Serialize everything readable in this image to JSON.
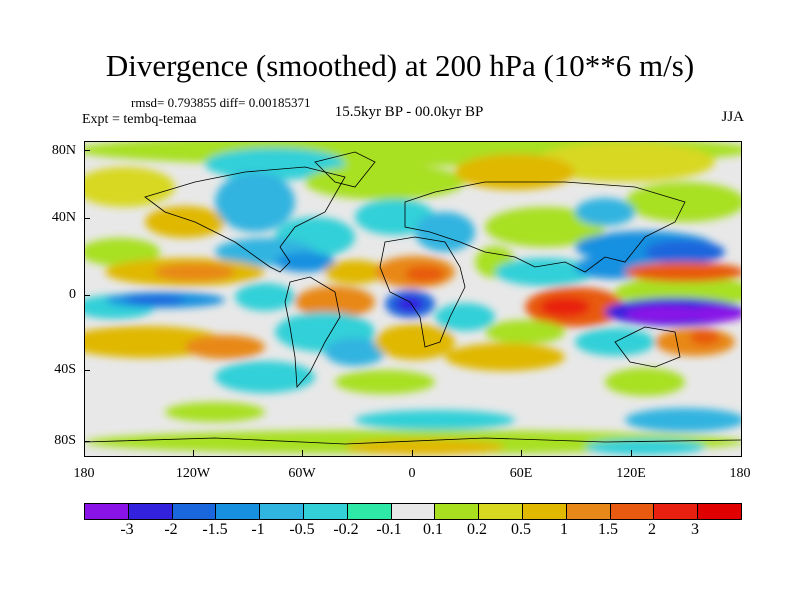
{
  "header": {
    "title": "Divergence (smoothed) at 200 hPa (10**6 m/s)",
    "stats": "rmsd= 0.793855 diff= 0.00185371",
    "expt": "Expt = tembq-temaa",
    "period": "15.5kyr BP - 00.0kyr BP",
    "season": "JJA"
  },
  "axes": {
    "y_labels": [
      "80N",
      "40N",
      "0",
      "40S",
      "80S"
    ],
    "x_labels": [
      "180",
      "120W",
      "60W",
      "0",
      "60E",
      "120E",
      "180"
    ]
  },
  "colorbar": {
    "labels": [
      "-3",
      "-2",
      "-1.5",
      "-1",
      "-0.5",
      "-0.2",
      "-0.1",
      "0.1",
      "0.2",
      "0.5",
      "1",
      "1.5",
      "2",
      "3"
    ],
    "colors": [
      "#8a14e8",
      "#3322dd",
      "#1a66dd",
      "#1890e0",
      "#30b4e0",
      "#33d0d8",
      "#2ee8a8",
      "#e8e8e8",
      "#a8e020",
      "#d8d820",
      "#e0b800",
      "#e88818",
      "#e85a10",
      "#e82010",
      "#e00000"
    ]
  }
}
